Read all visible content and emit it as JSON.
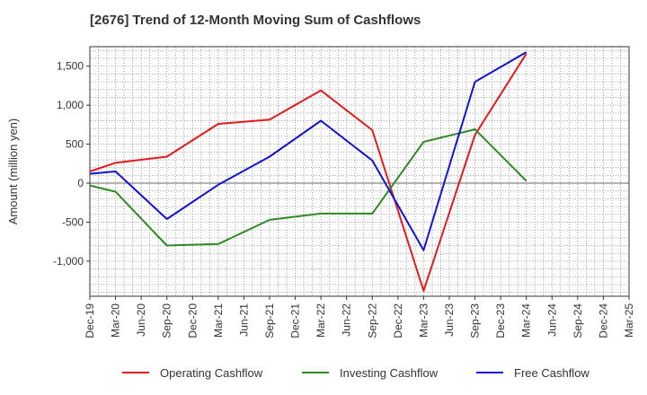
{
  "chart_data": {
    "type": "line",
    "title": "[2676]  Trend of 12-Month Moving Sum of Cashflows",
    "ylabel": "Amount (million yen)",
    "xlabel": "",
    "ylim": [
      -1450,
      1750
    ],
    "yticks": [
      1500,
      1000,
      500,
      0,
      -500,
      -1000
    ],
    "ytick_labels": [
      "1,500",
      "1,000",
      "500",
      "0",
      "-500",
      "-1,000"
    ],
    "categories": [
      "Dec-19",
      "Mar-20",
      "Jun-20",
      "Sep-20",
      "Dec-20",
      "Mar-21",
      "Jun-21",
      "Sep-21",
      "Dec-21",
      "Mar-22",
      "Jun-22",
      "Sep-22",
      "Dec-22",
      "Mar-23",
      "Jun-23",
      "Sep-23",
      "Dec-23",
      "Mar-24",
      "Jun-24",
      "Sep-24",
      "Dec-24",
      "Mar-25"
    ],
    "grid": true,
    "legend_position": "bottom",
    "series": [
      {
        "name": "Operating Cashflow",
        "color": "#e41a1c",
        "values": [
          150,
          260,
          null,
          340,
          null,
          760,
          null,
          815,
          null,
          1190,
          null,
          680,
          null,
          -1380,
          null,
          620,
          null,
          1660,
          null,
          null,
          null,
          null
        ]
      },
      {
        "name": "Investing Cashflow",
        "color": "#2e8b22",
        "values": [
          -30,
          -110,
          null,
          -800,
          null,
          -780,
          null,
          -470,
          null,
          -390,
          null,
          -390,
          null,
          530,
          null,
          690,
          null,
          30,
          null,
          null,
          null,
          null
        ]
      },
      {
        "name": "Free Cashflow",
        "color": "#1212d6",
        "values": [
          120,
          150,
          null,
          -460,
          null,
          -20,
          null,
          340,
          null,
          800,
          null,
          290,
          null,
          -860,
          null,
          1300,
          null,
          1680,
          null,
          null,
          null,
          null
        ]
      }
    ]
  }
}
